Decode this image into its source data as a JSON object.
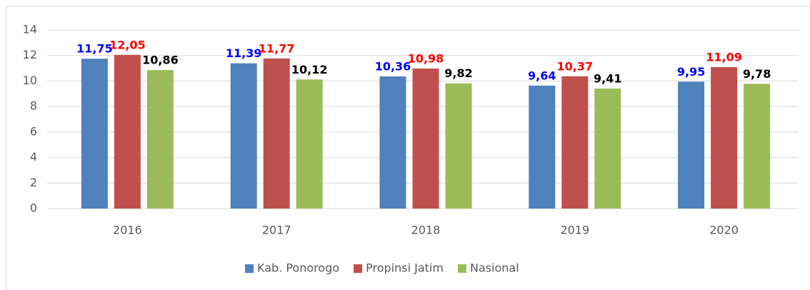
{
  "chart_data": {
    "type": "bar",
    "categories": [
      "2016",
      "2017",
      "2018",
      "2019",
      "2020"
    ],
    "series": [
      {
        "name": "Kab. Ponorogo",
        "color": "#4f81bd",
        "label_color": "#0000ff",
        "values": [
          11.75,
          11.39,
          10.36,
          9.64,
          9.95
        ],
        "value_labels": [
          "11,75",
          "11,39",
          "10,36",
          "9,64",
          "9,95"
        ]
      },
      {
        "name": "Propinsi Jatim",
        "color": "#c0504d",
        "label_color": "#ff0000",
        "values": [
          12.05,
          11.77,
          10.98,
          10.37,
          11.09
        ],
        "value_labels": [
          "12,05",
          "11,77",
          "10,98",
          "10,37",
          "11,09"
        ]
      },
      {
        "name": "Nasional",
        "color": "#9bbb59",
        "label_color": "#000000",
        "values": [
          10.86,
          10.12,
          9.82,
          9.41,
          9.78
        ],
        "value_labels": [
          "10,86",
          "10,12",
          "9,82",
          "9,41",
          "9,78"
        ]
      }
    ],
    "ylim": [
      0,
      14
    ],
    "yticks": [
      0,
      2,
      4,
      6,
      8,
      10,
      12,
      14
    ],
    "grid": true,
    "legend": "bottom"
  }
}
